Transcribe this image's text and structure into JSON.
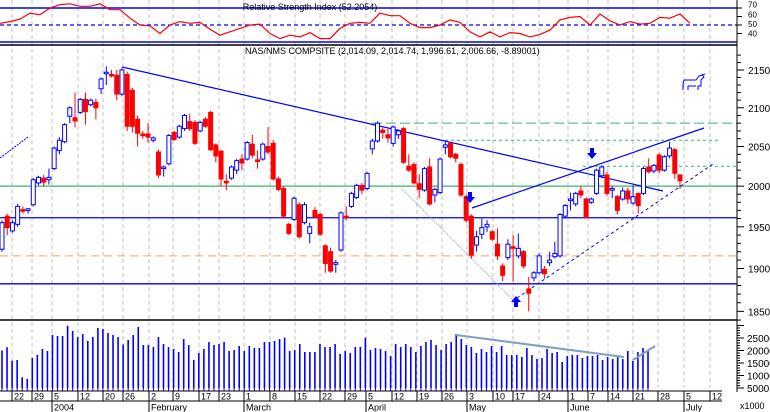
{
  "chart_data": [
    {
      "type": "line",
      "title": "Relative Strength Index (52.2054)",
      "yticks": [
        70,
        60,
        50,
        40
      ],
      "ylim": [
        30,
        78
      ],
      "reference_levels": [
        70,
        50,
        30
      ],
      "series": [
        {
          "values": [
            52,
            54,
            57,
            64,
            62,
            70,
            74,
            75,
            72,
            72,
            75,
            68,
            68,
            58,
            50,
            49,
            40,
            50,
            54,
            52,
            53,
            45,
            38,
            42,
            46,
            50,
            51,
            40,
            34,
            38,
            36,
            41,
            34,
            34,
            46,
            52,
            53,
            52,
            64,
            61,
            61,
            52,
            47,
            47,
            50,
            56,
            53,
            42,
            36,
            42,
            36,
            41,
            40,
            36,
            39,
            44,
            56,
            59,
            60,
            50,
            63,
            55,
            50,
            54,
            51,
            52,
            59,
            58,
            63,
            52
          ]
        }
      ],
      "color": "#ff0000"
    },
    {
      "type": "candlestick",
      "title": "NAS/NMS COMPSITE (2,014.09, 2,014.74, 1,996.61, 2,006.66, -8.89001)",
      "scale": "log",
      "ylim": [
        1835,
        2175
      ],
      "yticks": [
        2150,
        2100,
        2050,
        2000,
        1950,
        1900,
        1850
      ],
      "up_color": "#0000ff",
      "down_color": "#ff0000",
      "ohlc": [
        [
          1923,
          1958,
          1920,
          1955
        ],
        [
          1963,
          1966,
          1940,
          1949
        ],
        [
          1945,
          1958,
          1943,
          1955
        ],
        [
          1953,
          1978,
          1950,
          1975
        ],
        [
          1971,
          1975,
          1966,
          1969
        ],
        [
          1970,
          1973,
          1966,
          1972
        ],
        [
          1977,
          2010,
          1975,
          2008
        ],
        [
          2004,
          2013,
          2001,
          2011
        ],
        [
          2010,
          2014,
          2000,
          2005
        ],
        [
          2008,
          2022,
          2002,
          2011
        ],
        [
          2022,
          2050,
          2020,
          2048
        ],
        [
          2045,
          2062,
          2040,
          2058
        ],
        [
          2056,
          2080,
          2054,
          2078
        ],
        [
          2089,
          2102,
          2080,
          2100
        ],
        [
          2087,
          2120,
          2075,
          2083
        ],
        [
          2094,
          2113,
          2092,
          2111
        ],
        [
          2111,
          2120,
          2078,
          2095
        ],
        [
          2104,
          2112,
          2102,
          2110
        ],
        [
          2107,
          2112,
          2085,
          2100
        ],
        [
          2125,
          2140,
          2118,
          2138
        ],
        [
          2145,
          2155,
          2130,
          2147
        ],
        [
          2144,
          2150,
          2140,
          2142
        ],
        [
          2143,
          2150,
          2110,
          2118
        ],
        [
          2118,
          2153,
          2115,
          2150
        ],
        [
          2144,
          2148,
          2070,
          2076
        ],
        [
          2123,
          2126,
          2068,
          2076
        ],
        [
          2085,
          2090,
          2050,
          2067
        ],
        [
          2066,
          2070,
          2060,
          2064
        ],
        [
          2066,
          2080,
          2055,
          2062
        ],
        [
          2058,
          2063,
          2055,
          2061
        ],
        [
          2043,
          2046,
          2010,
          2014
        ],
        [
          2022,
          2026,
          2012,
          2024
        ],
        [
          2028,
          2066,
          2026,
          2064
        ],
        [
          2068,
          2070,
          2057,
          2059
        ],
        [
          2062,
          2078,
          2060,
          2076
        ],
        [
          2073,
          2092,
          2070,
          2090
        ],
        [
          2082,
          2092,
          2070,
          2073
        ],
        [
          2081,
          2084,
          2052,
          2054
        ],
        [
          2070,
          2083,
          2068,
          2081
        ],
        [
          2085,
          2088,
          2074,
          2076
        ],
        [
          2094,
          2096,
          2044,
          2046
        ],
        [
          2052,
          2054,
          2030,
          2038
        ],
        [
          2044,
          2046,
          2000,
          2009
        ],
        [
          2006,
          2015,
          1995,
          2004
        ],
        [
          2010,
          2026,
          2008,
          2024
        ],
        [
          2020,
          2034,
          2015,
          2032
        ],
        [
          2034,
          2040,
          2020,
          2029
        ],
        [
          2034,
          2057,
          2032,
          2055
        ],
        [
          2053,
          2065,
          2035,
          2039
        ],
        [
          2033,
          2045,
          2022,
          2031
        ],
        [
          2034,
          2055,
          2032,
          2053
        ],
        [
          2050,
          2075,
          2040,
          2043
        ],
        [
          2054,
          2058,
          2007,
          2009
        ],
        [
          2009,
          2012,
          1994,
          1996
        ],
        [
          1997,
          2000,
          1960,
          1963
        ],
        [
          1953,
          1955,
          1940,
          1942
        ],
        [
          1959,
          1987,
          1957,
          1985
        ],
        [
          1977,
          1980,
          1936,
          1938
        ],
        [
          1955,
          1980,
          1953,
          1977
        ],
        [
          1942,
          1955,
          1930,
          1950
        ],
        [
          1970,
          1974,
          1960,
          1962
        ],
        [
          1965,
          1967,
          1939,
          1941
        ],
        [
          1927,
          1929,
          1895,
          1906
        ],
        [
          1920,
          1925,
          1895,
          1897
        ],
        [
          1905,
          1910,
          1895,
          1907
        ],
        [
          1922,
          1969,
          1920,
          1967
        ],
        [
          1963,
          1975,
          1958,
          1961
        ],
        [
          1975,
          1993,
          1973,
          1991
        ],
        [
          1986,
          2003,
          1984,
          2001
        ],
        [
          2001,
          2004,
          1990,
          1995
        ],
        [
          1997,
          2018,
          1995,
          2016
        ],
        [
          2047,
          2060,
          2040,
          2057
        ],
        [
          2057,
          2082,
          2055,
          2080
        ],
        [
          2071,
          2074,
          2060,
          2068
        ],
        [
          2065,
          2075,
          2055,
          2061
        ],
        [
          2054,
          2077,
          2050,
          2075
        ],
        [
          2065,
          2072,
          2060,
          2070
        ],
        [
          2073,
          2075,
          2028,
          2030
        ],
        [
          2025,
          2040,
          2018,
          2020
        ],
        [
          2027,
          2030,
          2002,
          2004
        ],
        [
          2003,
          2015,
          1985,
          1996
        ],
        [
          1995,
          2024,
          1993,
          2022
        ],
        [
          2024,
          2035,
          1976,
          1978
        ],
        [
          1989,
          1998,
          1980,
          1996
        ],
        [
          1992,
          2036,
          1990,
          2034
        ],
        [
          2049,
          2056,
          2040,
          2052
        ],
        [
          2054,
          2056,
          2035,
          2037
        ],
        [
          2040,
          2042,
          2030,
          2035
        ],
        [
          2027,
          2030,
          1987,
          1989
        ],
        [
          1987,
          1990,
          1955,
          1958
        ],
        [
          1963,
          1965,
          1912,
          1916
        ],
        [
          1928,
          1945,
          1920,
          1938
        ],
        [
          1941,
          1960,
          1935,
          1949
        ],
        [
          1950,
          1958,
          1944,
          1953
        ],
        [
          1944,
          1946,
          1933,
          1935
        ],
        [
          1929,
          1948,
          1910,
          1915
        ],
        [
          1903,
          1906,
          1885,
          1892
        ],
        [
          1913,
          1935,
          1910,
          1929
        ],
        [
          1926,
          1940,
          1885,
          1924
        ],
        [
          1915,
          1942,
          1912,
          1924
        ],
        [
          1920,
          1922,
          1900,
          1903
        ],
        [
          1876,
          1890,
          1850,
          1871
        ],
        [
          1889,
          1897,
          1885,
          1895
        ],
        [
          1895,
          1918,
          1893,
          1915
        ],
        [
          1899,
          1903,
          1888,
          1894
        ],
        [
          1907,
          1920,
          1903,
          1910
        ],
        [
          1914,
          1932,
          1912,
          1918
        ],
        [
          1915,
          1967,
          1913,
          1965
        ],
        [
          1963,
          1978,
          1960,
          1976
        ],
        [
          1982,
          1992,
          1970,
          1984
        ],
        [
          1978,
          1993,
          1975,
          1991
        ],
        [
          1994,
          2000,
          1985,
          1989
        ],
        [
          1984,
          1986,
          1961,
          1961
        ],
        [
          1980,
          1986,
          1978,
          1984
        ],
        [
          1991,
          2022,
          1989,
          2020
        ],
        [
          2013,
          2026,
          2010,
          2024
        ],
        [
          2014,
          2018,
          1988,
          1991
        ],
        [
          1995,
          2000,
          1985,
          1997
        ],
        [
          1987,
          1989,
          1965,
          1970
        ],
        [
          1984,
          1998,
          1982,
          1994
        ],
        [
          1994,
          1998,
          1978,
          1984
        ],
        [
          1979,
          2001,
          1977,
          1987
        ],
        [
          1991,
          1992,
          1966,
          1976
        ],
        [
          1991,
          2024,
          1989,
          2022
        ],
        [
          2024,
          2035,
          2016,
          2018
        ],
        [
          2019,
          2028,
          2016,
          2026
        ],
        [
          2039,
          2042,
          2016,
          2020
        ],
        [
          2020,
          2039,
          2018,
          2037
        ],
        [
          2038,
          2056,
          2035,
          2048
        ],
        [
          2046,
          2048,
          2009,
          2016
        ],
        [
          2014.09,
          2014.74,
          1996.61,
          2006.66
        ]
      ],
      "horizontal_levels": [
        {
          "value": 2080,
          "color": "#3cb371",
          "style": "dashed"
        },
        {
          "value": 2058,
          "color": "#3cb371",
          "style": "dotted"
        },
        {
          "value": 2025,
          "color": "#3cb371",
          "style": "dotted"
        },
        {
          "value": 2000,
          "color": "#3cb371",
          "style": "solid"
        },
        {
          "value": 1961,
          "color": "#0000ff",
          "style": "solid"
        },
        {
          "value": 1915,
          "color": "#f4a460",
          "style": "dashed"
        },
        {
          "value": 1882,
          "color": "#0000ff",
          "style": "solid"
        }
      ]
    },
    {
      "type": "bar",
      "title": "",
      "unit_label": "x1000",
      "yticks": [
        25000,
        20000,
        15000,
        10000,
        5000
      ],
      "color": "#0000ff",
      "values": [
        20000,
        21300,
        15900,
        16200,
        9300,
        8600,
        17000,
        18200,
        20600,
        19800,
        26200,
        25800,
        25800,
        29900,
        27800,
        25400,
        26600,
        23800,
        25400,
        29000,
        28600,
        27000,
        26200,
        25400,
        22400,
        24200,
        26200,
        29400,
        22200,
        22200,
        21400,
        25400,
        22600,
        21400,
        20600,
        19400,
        24600,
        22200,
        16200,
        19000,
        20600,
        23400,
        22200,
        22600,
        23400,
        19800,
        20200,
        21800,
        19800,
        21800,
        21000,
        21000,
        23400,
        23400,
        23800,
        24600,
        25100,
        19800,
        20200,
        22600,
        19400,
        19400,
        19400,
        22600,
        21400,
        21400,
        22600,
        18600,
        19800,
        19000,
        21400,
        21400,
        25100,
        20200,
        21000,
        20600,
        19800,
        17800,
        22600,
        21400,
        22600,
        21400,
        19400,
        21800,
        23400,
        24200,
        22200,
        20200,
        22600,
        23400,
        26600,
        24600,
        22200,
        21400,
        19000,
        20600,
        19400,
        21800,
        19400,
        21800,
        18200,
        18200,
        18200,
        17400,
        21000,
        18200,
        16600,
        17000,
        20600,
        19000,
        19400,
        15400,
        17800,
        18200,
        18200,
        17000,
        17800,
        17800,
        18200,
        16200,
        17400,
        16600,
        17400,
        16600,
        19800,
        15800,
        19400,
        21000,
        19800
      ]
    }
  ],
  "x_axis": {
    "day_labels": [
      "22",
      "29",
      "5",
      "12",
      "20",
      "26",
      "2",
      "9",
      "17",
      "23",
      "1",
      "8",
      "15",
      "22",
      "29",
      "5",
      "12",
      "19",
      "26",
      "3",
      "10",
      "17",
      "24",
      "1",
      "7",
      "14",
      "21",
      "28",
      "5",
      "12"
    ],
    "month_labels": [
      "2004",
      "February",
      "March",
      "April",
      "May",
      "June",
      "July"
    ]
  },
  "icons": {
    "bull": "bull-icon",
    "arrows": [
      "arrow-down-icon",
      "arrow-down-icon",
      "arrow-up-icon"
    ]
  }
}
